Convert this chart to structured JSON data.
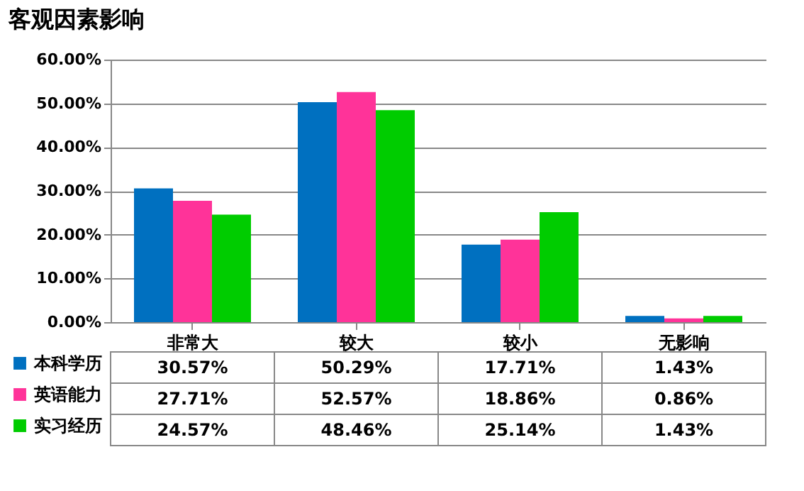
{
  "chart_data": {
    "type": "bar",
    "title": "客观因素影响",
    "categories": [
      "非常大",
      "较大",
      "较小",
      "无影响"
    ],
    "series": [
      {
        "name": "本科学历",
        "color": "#0070c0",
        "values": [
          30.57,
          50.29,
          17.71,
          1.43
        ],
        "value_labels": [
          "30.57%",
          "50.29%",
          "17.71%",
          "1.43%"
        ]
      },
      {
        "name": "英语能力",
        "color": "#ff3399",
        "values": [
          27.71,
          52.57,
          18.86,
          0.86
        ],
        "value_labels": [
          "27.71%",
          "52.57%",
          "18.86%",
          "0.86%"
        ]
      },
      {
        "name": "实习经历",
        "color": "#00cc00",
        "values": [
          24.57,
          48.46,
          25.14,
          1.43
        ],
        "value_labels": [
          "24.57%",
          "48.46%",
          "25.14%",
          "1.43%"
        ]
      }
    ],
    "ylim": [
      0,
      60
    ],
    "yticks": [
      {
        "value": 0,
        "label": "0.00%"
      },
      {
        "value": 10,
        "label": "10.00%"
      },
      {
        "value": 20,
        "label": "20.00%"
      },
      {
        "value": 30,
        "label": "30.00%"
      },
      {
        "value": 40,
        "label": "40.00%"
      },
      {
        "value": 50,
        "label": "50.00%"
      },
      {
        "value": 60,
        "label": "60.00%"
      }
    ],
    "grid": "y",
    "legend": "bottom left"
  }
}
